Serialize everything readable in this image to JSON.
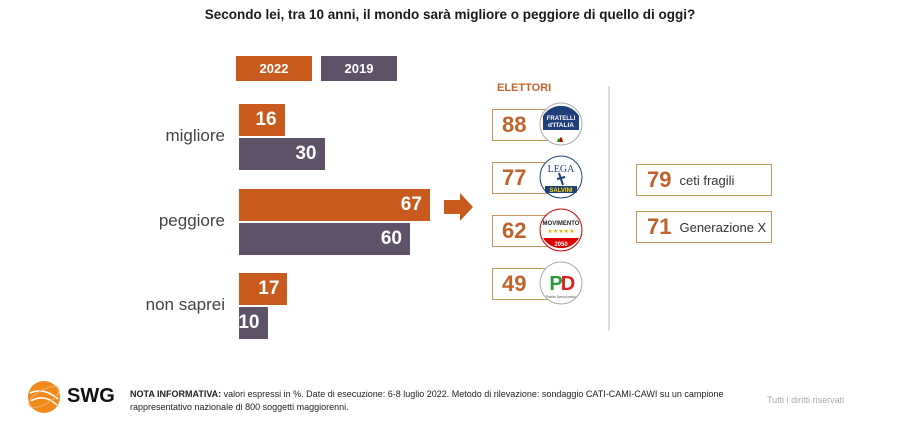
{
  "title": "Secondo lei, tra 10 anni, il mondo sarà migliore o peggiore di quello di oggi?",
  "colors": {
    "s2022": "#c85a1e",
    "s2019": "#5e5268",
    "accent": "#c0622a"
  },
  "chart_data": {
    "type": "bar",
    "orientation": "horizontal",
    "title": "Secondo lei, tra 10 anni, il mondo sarà migliore o peggiore di quello di oggi?",
    "categories": [
      "migliore",
      "peggiore",
      "non saprei"
    ],
    "series": [
      {
        "name": "2022",
        "values": [
          16,
          67,
          17
        ]
      },
      {
        "name": "2019",
        "values": [
          30,
          60,
          10
        ]
      }
    ],
    "xlim": [
      0,
      70
    ],
    "unit": "%",
    "legend": "top",
    "grid": false
  },
  "legend": {
    "items": [
      "2022",
      "2019"
    ]
  },
  "elettori": {
    "title": "ELETTORI",
    "parties": [
      {
        "value": "88",
        "logo": "fratelli-ditalia-logo",
        "text": "FRATELLI d'ITALIA"
      },
      {
        "value": "77",
        "logo": "lega-salvini-logo",
        "text": "LEGA SALVINI"
      },
      {
        "value": "62",
        "logo": "movimento-5-stelle-logo",
        "text": "MOVIMENTO 2050"
      },
      {
        "value": "49",
        "logo": "partito-democratico-logo",
        "text": "PD"
      }
    ]
  },
  "segments": [
    {
      "value": "79",
      "label": "ceti fragili"
    },
    {
      "value": "71",
      "label": "Generazione X"
    }
  ],
  "footer": {
    "note_label": "NOTA INFORMATIVA:",
    "note_text": " valori espressi in %. Date di esecuzione: 6-8 luglio 2022. Metodo di rilevazione: sondaggio CATI-CAMI-CAWI su un campione rappresentativo nazionale di 800 soggetti maggiorenni.",
    "logo_text": "SWG",
    "rights": "Tutti i diritti riservati"
  }
}
